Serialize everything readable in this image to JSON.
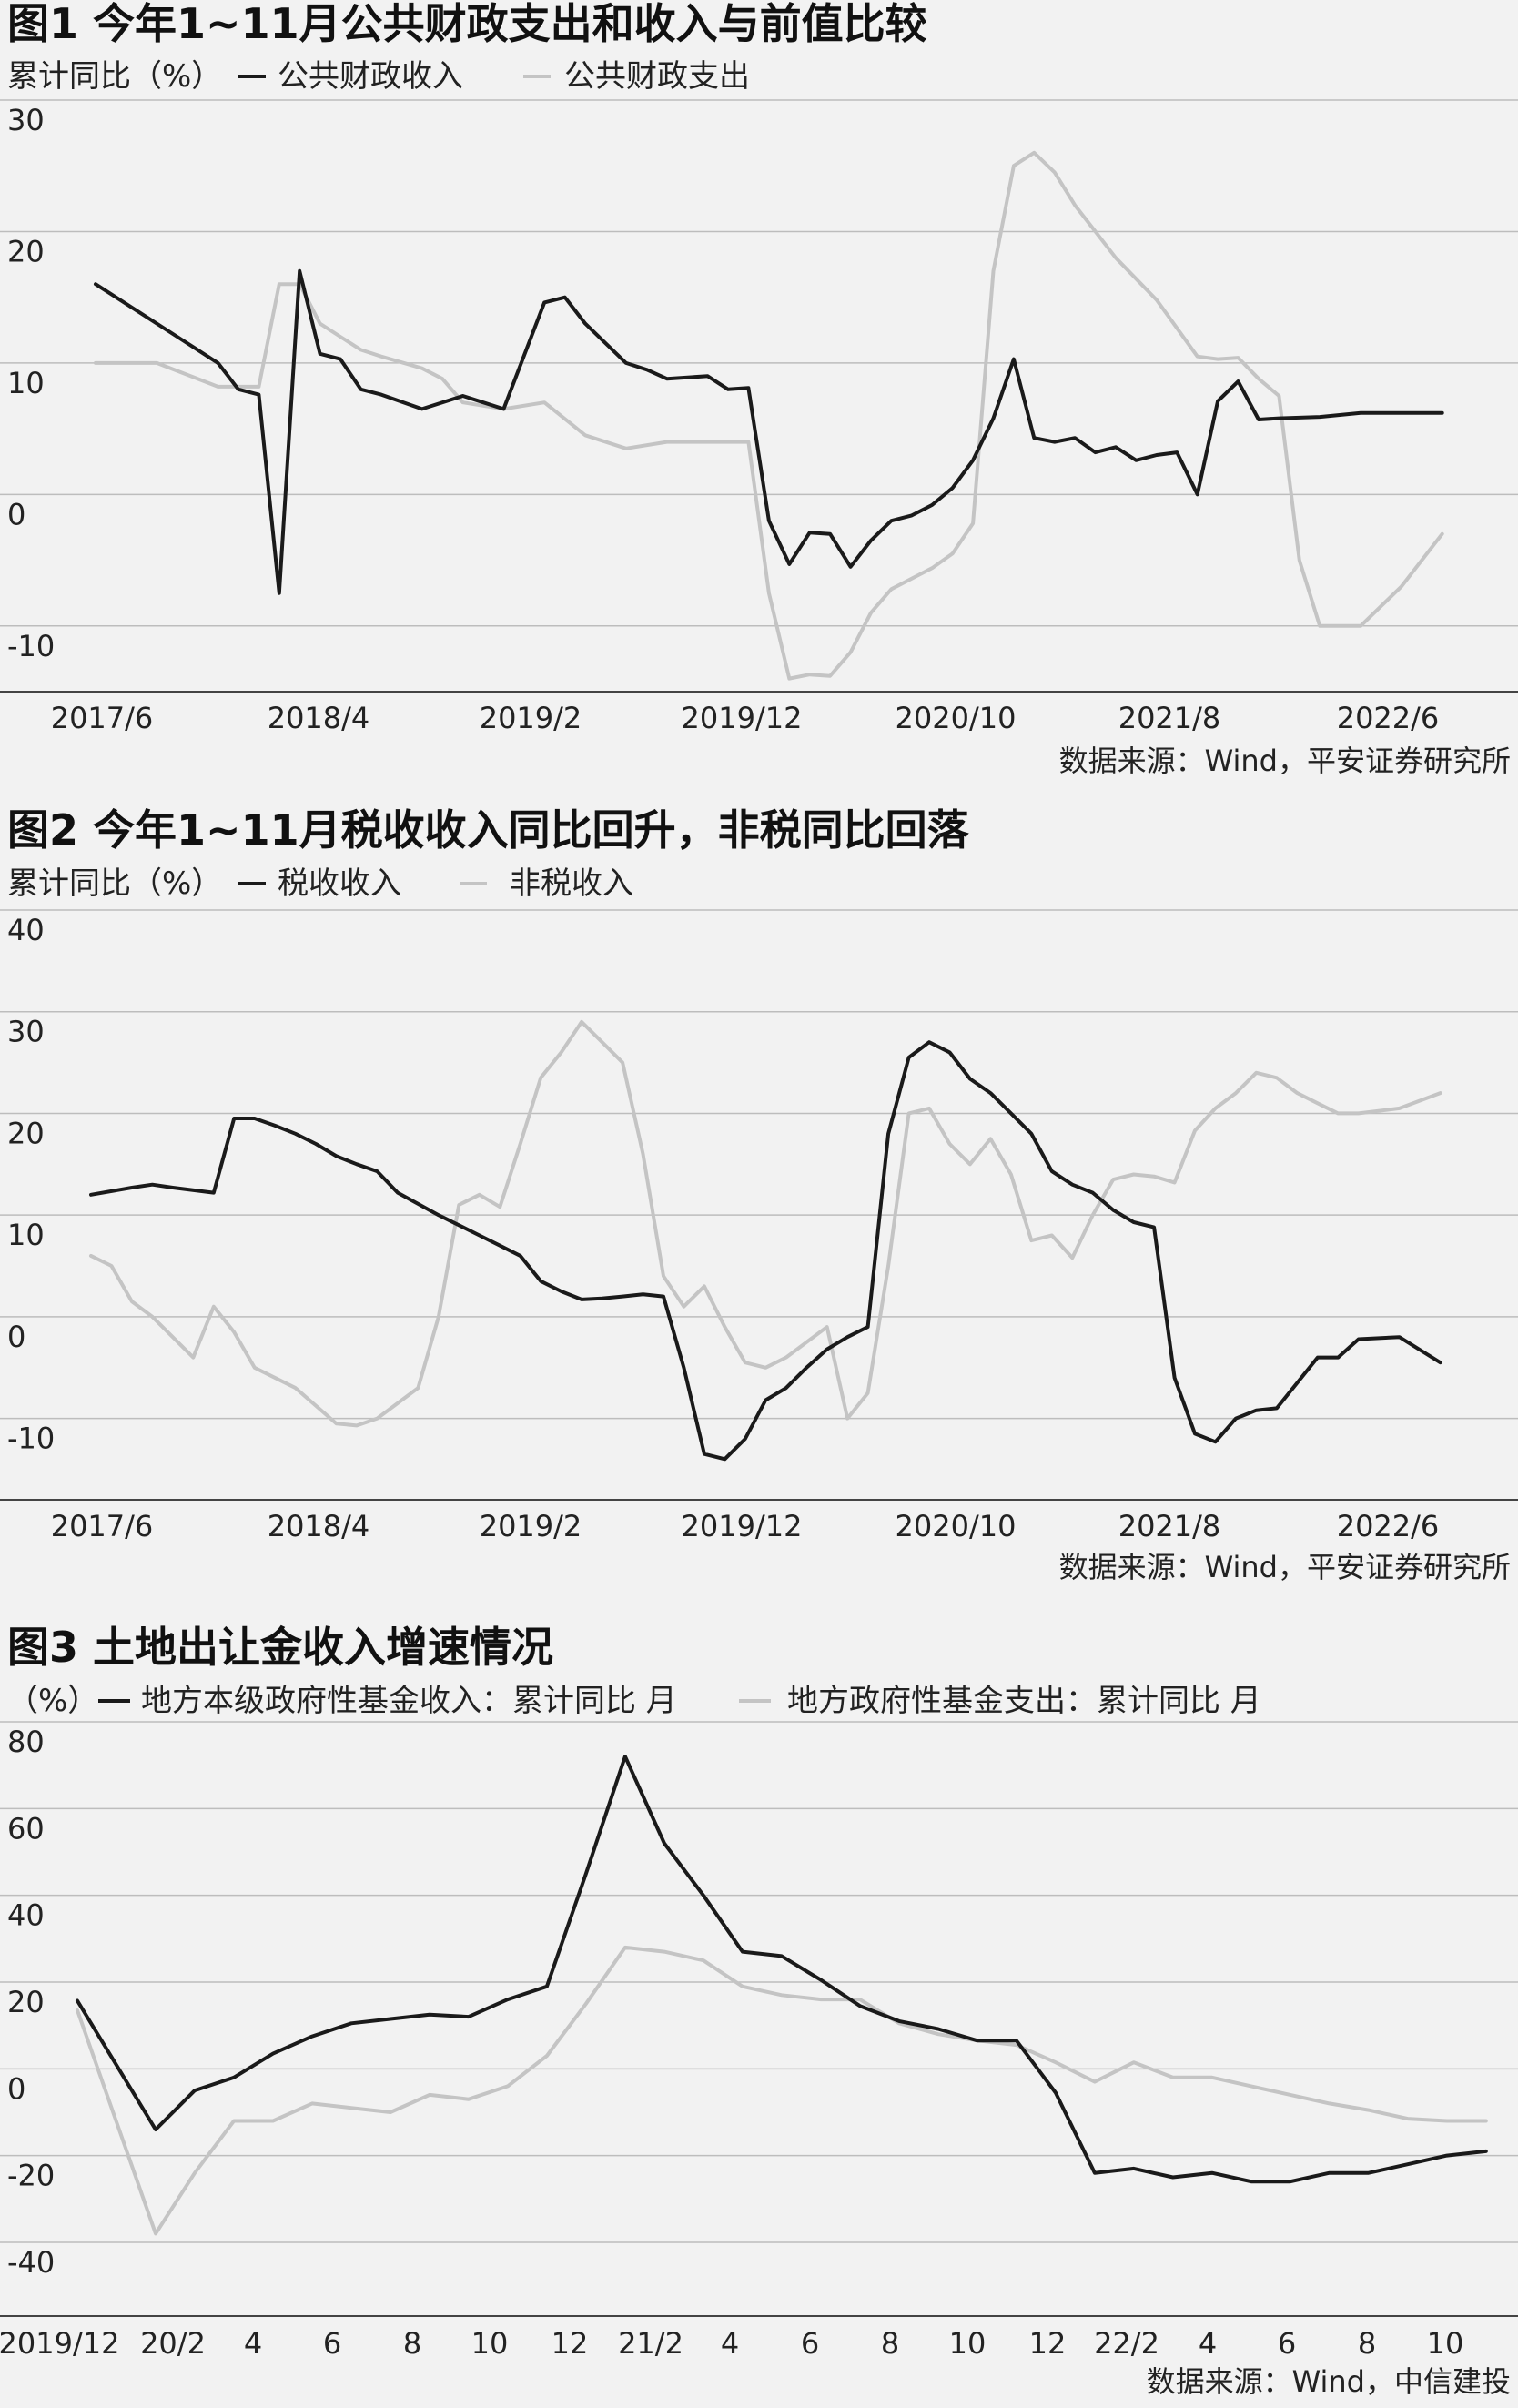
{
  "colors": {
    "dark": "#1a1a1a",
    "light": "#c4c4c4",
    "background": "#f2f2f2"
  },
  "chart_data": [
    {
      "type": "line",
      "title": "图1 今年1~11月公共财政支出和收入与前值比较",
      "unit_label": "累计同比（%）",
      "categories": [
        "2017/6",
        "2018/4",
        "2019/2",
        "2019/12",
        "2020/10",
        "2021/8",
        "2022/6"
      ],
      "ylim": [
        -15,
        30
      ],
      "yticks": [
        30,
        20,
        10,
        0,
        -10
      ],
      "ytick_labels": [
        "30",
        "20",
        "10",
        "0",
        "-10"
      ],
      "xdomain": [
        0,
        69
      ],
      "source": "数据来源：Wind，平安证券研究所",
      "series": [
        {
          "name": "公共财政收入",
          "color": "dark",
          "x": [
            0,
            2,
            4,
            5,
            6,
            7,
            8,
            9,
            10,
            11,
            12,
            13,
            14,
            16,
            18,
            19,
            20,
            22,
            23,
            24,
            26,
            27,
            28,
            30,
            31,
            32,
            33,
            34,
            35,
            36,
            37,
            38,
            39,
            40,
            41,
            42,
            43,
            44,
            45,
            46,
            47,
            48,
            49,
            50,
            51,
            52,
            53,
            54,
            55,
            56,
            57,
            58,
            60,
            62,
            66
          ],
          "values": [
            16,
            14,
            12,
            11,
            10,
            8,
            7.6,
            -7.5,
            17,
            10.7,
            10.3,
            8,
            7.6,
            6.5,
            7.5,
            7,
            6.5,
            14.6,
            15,
            13,
            10,
            9.5,
            8.8,
            9,
            8,
            8.1,
            -2,
            -5.3,
            -2.9,
            -3,
            -5.5,
            -3.5,
            -2,
            -1.6,
            -0.8,
            0.5,
            2.6,
            5.8,
            10.3,
            4.3,
            4,
            4.3,
            3.2,
            3.6,
            2.6,
            3,
            3.2,
            0,
            7.1,
            8.6,
            5.7,
            5.8,
            5.9,
            6.2,
            6.2
          ]
        },
        {
          "name": "公共财政支出",
          "color": "light",
          "x": [
            0,
            1,
            3,
            6,
            7,
            8,
            9,
            10,
            11,
            12,
            13,
            14,
            16,
            17,
            18,
            20,
            22,
            24,
            26,
            28,
            30,
            32,
            33,
            34,
            35,
            36,
            37,
            38,
            39,
            41,
            42,
            43,
            44,
            45,
            46,
            47,
            48,
            49,
            50,
            52,
            54,
            55,
            56,
            57,
            58,
            59,
            60,
            62,
            64,
            66
          ],
          "values": [
            10,
            10,
            10,
            8.2,
            8.2,
            8.2,
            16,
            16,
            13,
            12,
            11,
            10.5,
            9.6,
            8.8,
            7,
            6.5,
            7,
            4.5,
            3.5,
            4,
            4,
            4,
            -7.5,
            -14,
            -13.7,
            -13.8,
            -12,
            -9,
            -7.2,
            -5.6,
            -4.5,
            -2.2,
            17,
            25,
            26,
            24.5,
            22,
            20,
            18,
            14.8,
            10.5,
            10.3,
            10.4,
            8.8,
            7.5,
            -5,
            -10,
            -10,
            -7,
            -3
          ]
        }
      ]
    },
    {
      "type": "line",
      "title": "图2 今年1~11月税收收入同比回升，非税同比回落",
      "unit_label": "累计同比（%）",
      "categories": [
        "2017/6",
        "2018/4",
        "2019/2",
        "2019/12",
        "2020/10",
        "2021/8",
        "2022/6"
      ],
      "ylim": [
        -18,
        40
      ],
      "yticks": [
        40,
        30,
        20,
        10,
        0,
        -10
      ],
      "ytick_labels": [
        "40",
        "30",
        "20",
        "10",
        "0",
        "-10"
      ],
      "xdomain": [
        0,
        69
      ],
      "source": "数据来源：Wind，平安证券研究所",
      "series": [
        {
          "name": "税收收入",
          "color": "dark",
          "x": [
            0,
            2,
            3,
            4,
            6,
            7,
            8,
            9,
            10,
            11,
            12,
            13,
            14,
            15,
            16,
            17,
            18,
            19,
            20,
            21,
            22,
            23,
            24,
            25,
            26,
            27,
            28,
            29,
            30,
            31,
            32,
            33,
            34,
            35,
            36,
            37,
            38,
            39,
            40,
            41,
            42,
            43,
            44,
            45,
            46,
            47,
            48,
            49,
            50,
            51,
            52,
            53,
            54,
            55,
            56,
            57,
            58,
            59,
            60,
            61,
            62,
            64,
            66
          ],
          "values": [
            12,
            12.7,
            13,
            12.7,
            12.2,
            19.5,
            19.5,
            18.8,
            18,
            17,
            15.8,
            15,
            14.3,
            12.2,
            11.1,
            10,
            9,
            8,
            7,
            6,
            3.5,
            2.5,
            1.7,
            1.8,
            2,
            2.2,
            2,
            -5,
            -13.5,
            -14,
            -12,
            -8.2,
            -7,
            -5,
            -3.2,
            -2,
            -1,
            18,
            25.5,
            27,
            26,
            23.4,
            22,
            20,
            18,
            14.3,
            13,
            12.2,
            10.5,
            9.3,
            8.8,
            -6,
            -11.5,
            -12.3,
            -10,
            -9.2,
            -9,
            -6.5,
            -4,
            -4,
            -2.2,
            -2,
            -4.5
          ]
        },
        {
          "name": "非税收入",
          "color": "light",
          "x": [
            0,
            1,
            2,
            3,
            5,
            6,
            7,
            8,
            10,
            12,
            13,
            14,
            16,
            17,
            18,
            19,
            20,
            21,
            22,
            23,
            24,
            25,
            26,
            27,
            28,
            29,
            30,
            31,
            32,
            33,
            34,
            36,
            37,
            38,
            39,
            40,
            41,
            42,
            43,
            44,
            45,
            46,
            47,
            48,
            49,
            50,
            51,
            52,
            53,
            54,
            55,
            56,
            57,
            58,
            59,
            60,
            61,
            62,
            64,
            66
          ],
          "values": [
            6,
            5,
            1.5,
            0,
            -4,
            1,
            -1.5,
            -5,
            -7,
            -10.5,
            -10.7,
            -10,
            -7,
            0,
            11,
            12,
            10.8,
            17,
            23.5,
            26,
            29,
            27,
            25,
            16,
            4,
            1,
            3,
            -1,
            -4.5,
            -5,
            -4,
            -1,
            -10,
            -7.5,
            5,
            20,
            20.5,
            17,
            15,
            17.5,
            14,
            7.5,
            8,
            5.8,
            10,
            13.5,
            14,
            13.8,
            13.2,
            18.3,
            20.5,
            22,
            24,
            23.5,
            22,
            21,
            20,
            20,
            20.5,
            22
          ]
        }
      ]
    },
    {
      "type": "line",
      "title": "图3 土地出让金收入增速情况",
      "unit_label": "（%）",
      "categories": [
        "2019/12",
        "20/2",
        "4",
        "6",
        "8",
        "10",
        "12",
        "21/2",
        "4",
        "6",
        "8",
        "10",
        "12",
        "22/2",
        "4",
        "6",
        "8",
        "10"
      ],
      "ylim": [
        -57,
        80
      ],
      "yticks": [
        80,
        60,
        40,
        20,
        0,
        -20,
        -40
      ],
      "ytick_labels": [
        "80",
        "60",
        "40",
        "20",
        "0",
        "-20",
        "-40"
      ],
      "xdomain": [
        0,
        36.4
      ],
      "source": "数据来源：Wind，中信建投",
      "series": [
        {
          "name": "地方本级政府性基金收入：累计同比 月",
          "color": "dark",
          "x": [
            0,
            2,
            3,
            4,
            5,
            6,
            7,
            8,
            9,
            10,
            11,
            12,
            13,
            14,
            15,
            16,
            17,
            18,
            19,
            20,
            21,
            22,
            23,
            24,
            25,
            26,
            27,
            28,
            29,
            30,
            31,
            32,
            33,
            34,
            35,
            36
          ],
          "values": [
            15.7,
            -14,
            -5,
            -2,
            3.5,
            7.5,
            10.5,
            11.5,
            12.5,
            12,
            16,
            19,
            45,
            72,
            52,
            40,
            27,
            26,
            20.5,
            14.5,
            11,
            9.2,
            6.5,
            6.5,
            -5.5,
            -24,
            -23,
            -25,
            -24,
            -26,
            -26,
            -24,
            -24,
            -22,
            -20,
            -19
          ]
        },
        {
          "name": "地方政府性基金支出：累计同比 月",
          "color": "light",
          "x": [
            0,
            2,
            3,
            4,
            5,
            6,
            7,
            8,
            9,
            10,
            11,
            12,
            13,
            14,
            15,
            16,
            17,
            18,
            19,
            20,
            21,
            22,
            23,
            24,
            25,
            26,
            27,
            28,
            29,
            30,
            31,
            32,
            33,
            34,
            35,
            36
          ],
          "values": [
            13.5,
            -38,
            -24,
            -12,
            -12,
            -8,
            -9,
            -10,
            -6,
            -7,
            -4,
            3,
            15,
            28,
            27,
            25,
            19,
            17,
            16,
            16,
            10.5,
            8,
            6.5,
            5.5,
            1.5,
            -3,
            1.5,
            -2,
            -2,
            -4,
            -6,
            -8,
            -9.5,
            -11.5,
            -12,
            -12
          ]
        }
      ]
    }
  ]
}
